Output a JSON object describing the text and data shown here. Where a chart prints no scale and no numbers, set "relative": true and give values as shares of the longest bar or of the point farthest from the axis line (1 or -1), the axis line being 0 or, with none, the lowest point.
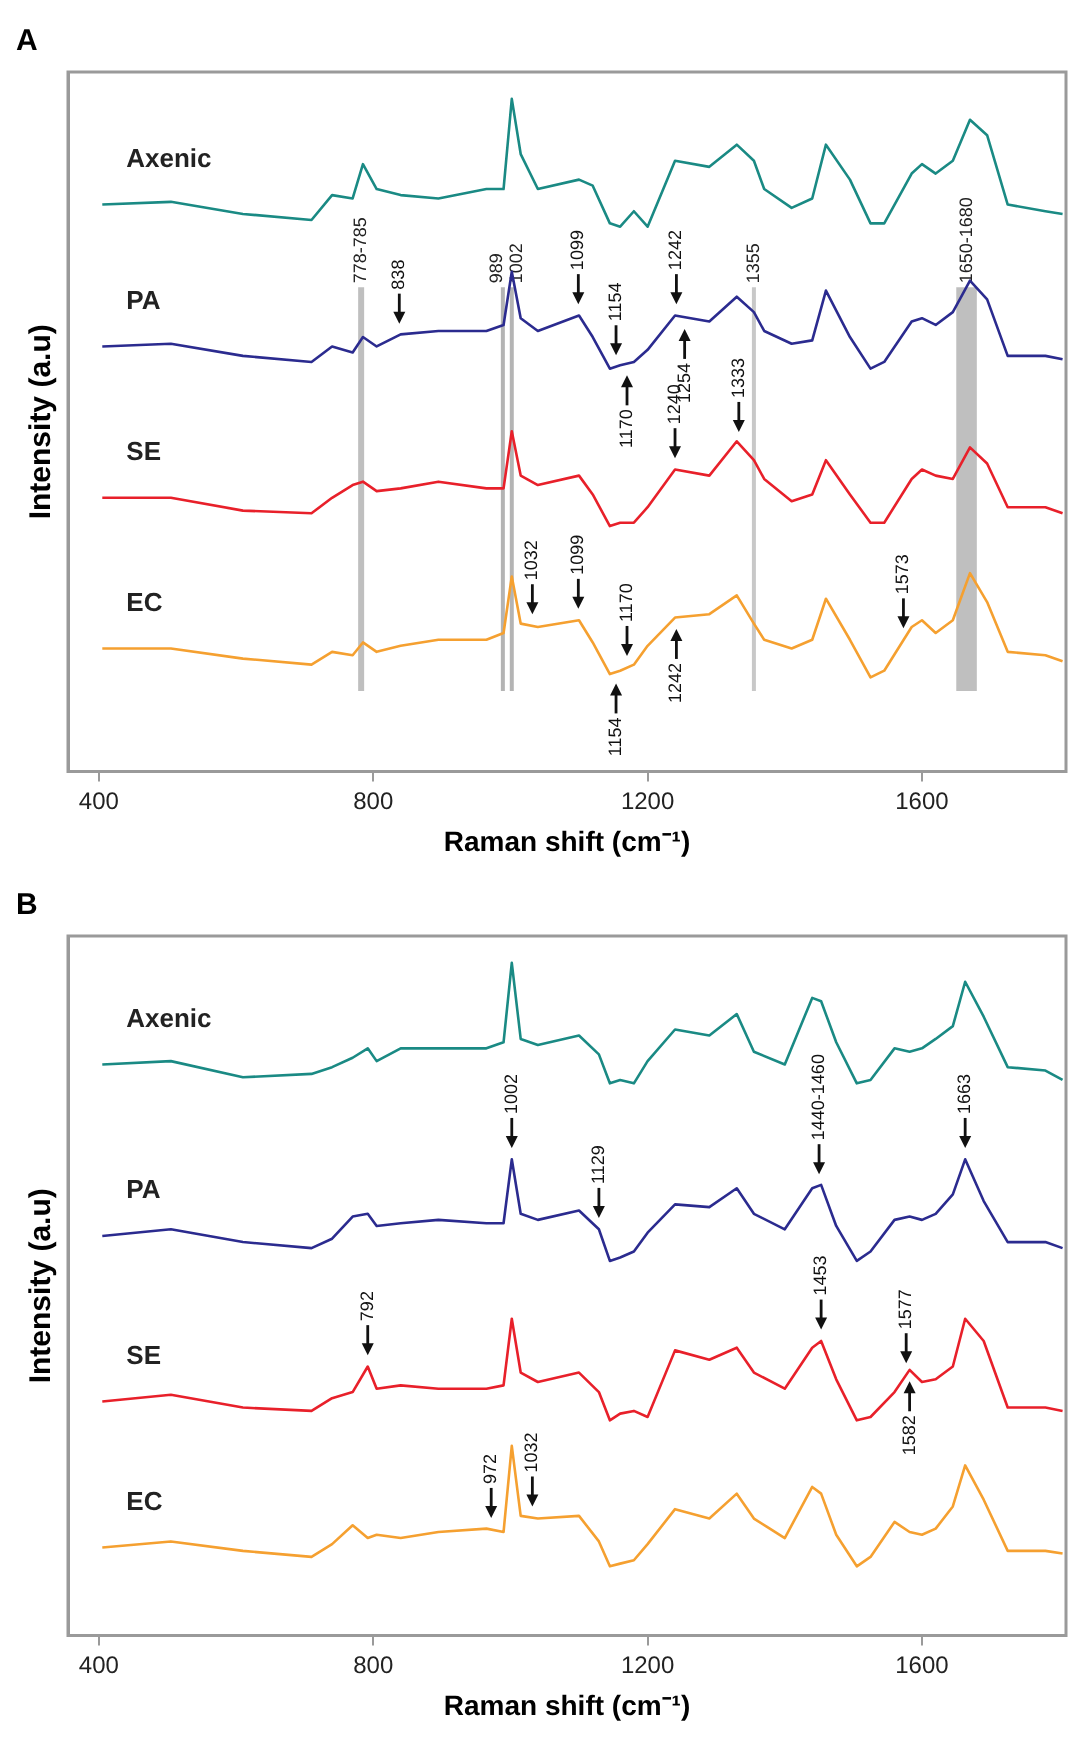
{
  "chart_data": [
    {
      "type": "line",
      "title": "A",
      "xlabel": "Raman shift (cm⁻¹)",
      "ylabel": "Intensity (a.u)",
      "relative": true,
      "marker": "none",
      "legend": false,
      "xlim": [
        355,
        1810
      ],
      "xticks": [
        400,
        800,
        1200,
        1600
      ],
      "x": [
        405,
        505,
        610,
        710,
        740,
        770,
        785,
        805,
        840,
        895,
        965,
        990,
        1002,
        1015,
        1040,
        1100,
        1120,
        1145,
        1160,
        1180,
        1200,
        1240,
        1290,
        1330,
        1355,
        1370,
        1410,
        1440,
        1460,
        1495,
        1525,
        1545,
        1585,
        1600,
        1620,
        1645,
        1670,
        1695,
        1725,
        1780,
        1805
      ],
      "series": [
        {
          "name": "Axenic",
          "color": "#1a8a84",
          "values": [
            0.843,
            0.847,
            0.829,
            0.82,
            0.857,
            0.852,
            0.903,
            0.866,
            0.857,
            0.852,
            0.866,
            0.866,
            1,
            0.918,
            0.866,
            0.88,
            0.871,
            0.815,
            0.81,
            0.833,
            0.81,
            0.908,
            0.899,
            0.932,
            0.908,
            0.866,
            0.838,
            0.852,
            0.932,
            0.88,
            0.815,
            0.815,
            0.889,
            0.903,
            0.889,
            0.908,
            0.969,
            0.946,
            0.843,
            0.833,
            0.829
          ]
        },
        {
          "name": "PA",
          "color": "#2b2b8f",
          "values": [
            0.632,
            0.636,
            0.618,
            0.609,
            0.632,
            0.623,
            0.646,
            0.632,
            0.65,
            0.655,
            0.655,
            0.664,
            0.743,
            0.674,
            0.655,
            0.678,
            0.646,
            0.599,
            0.604,
            0.609,
            0.627,
            0.678,
            0.669,
            0.706,
            0.683,
            0.655,
            0.636,
            0.641,
            0.715,
            0.646,
            0.599,
            0.609,
            0.669,
            0.674,
            0.664,
            0.683,
            0.73,
            0.702,
            0.618,
            0.618,
            0.613
          ]
        },
        {
          "name": "SE",
          "color": "#e8202a",
          "values": [
            0.407,
            0.407,
            0.388,
            0.384,
            0.407,
            0.426,
            0.431,
            0.417,
            0.421,
            0.431,
            0.421,
            0.421,
            0.506,
            0.44,
            0.426,
            0.44,
            0.412,
            0.365,
            0.37,
            0.37,
            0.393,
            0.449,
            0.44,
            0.491,
            0.463,
            0.435,
            0.402,
            0.412,
            0.463,
            0.412,
            0.37,
            0.37,
            0.435,
            0.449,
            0.44,
            0.435,
            0.482,
            0.458,
            0.393,
            0.393,
            0.384
          ]
        },
        {
          "name": "EC",
          "color": "#f5a030",
          "values": [
            0.183,
            0.183,
            0.168,
            0.159,
            0.178,
            0.173,
            0.192,
            0.178,
            0.187,
            0.196,
            0.196,
            0.206,
            0.29,
            0.22,
            0.215,
            0.225,
            0.192,
            0.145,
            0.15,
            0.159,
            0.187,
            0.229,
            0.234,
            0.262,
            0.22,
            0.196,
            0.183,
            0.196,
            0.257,
            0.196,
            0.14,
            0.15,
            0.215,
            0.225,
            0.206,
            0.225,
            0.295,
            0.252,
            0.178,
            0.173,
            0.164
          ]
        }
      ],
      "bands": [
        {
          "axis": "x",
          "from": 778,
          "to": 785,
          "label": "778-785",
          "color": "#b4b4b4"
        },
        {
          "axis": "x",
          "from": 1650,
          "to": 1680,
          "label": "1650-1680",
          "color": "#b4b4b4"
        }
      ],
      "ref_lines": [
        {
          "axis": "x",
          "value": 989,
          "label": "989",
          "color": "#b4b4b4"
        },
        {
          "axis": "x",
          "value": 1002,
          "label": "1002",
          "color": "#b4b4b4"
        },
        {
          "axis": "x",
          "value": 1355,
          "label": "1355",
          "color": "#c8c8c8"
        }
      ],
      "annotations": [
        {
          "text": "838",
          "x": 838,
          "y": 0.657
        },
        {
          "text": "1099",
          "x": 1099,
          "y": 0.686
        },
        {
          "text": "1154",
          "x": 1154,
          "y": 0.61
        },
        {
          "text": "1242",
          "x": 1242,
          "y": 0.686
        },
        {
          "text": "1170",
          "x": 1170,
          "y": 0.598
        },
        {
          "text": "1254",
          "x": 1254,
          "y": 0.667
        },
        {
          "text": "1240",
          "x": 1240,
          "y": 0.457
        },
        {
          "text": "1333",
          "x": 1333,
          "y": 0.496
        },
        {
          "text": "1032",
          "x": 1032,
          "y": 0.225
        },
        {
          "text": "1099",
          "x": 1099,
          "y": 0.233
        },
        {
          "text": "1170",
          "x": 1170,
          "y": 0.163
        },
        {
          "text": "1573",
          "x": 1573,
          "y": 0.204
        },
        {
          "text": "1154",
          "x": 1154,
          "y": 0.14
        },
        {
          "text": "1242",
          "x": 1242,
          "y": 0.221
        }
      ]
    },
    {
      "type": "line",
      "title": "B",
      "xlabel": "Raman shift (cm⁻¹)",
      "ylabel": "Intensity (a.u)",
      "relative": true,
      "marker": "none",
      "legend": false,
      "xlim": [
        355,
        1810
      ],
      "xticks": [
        400,
        800,
        1200,
        1600
      ],
      "x": [
        405,
        505,
        610,
        710,
        740,
        770,
        792,
        805,
        840,
        895,
        965,
        990,
        1002,
        1015,
        1040,
        1100,
        1129,
        1145,
        1160,
        1180,
        1200,
        1240,
        1290,
        1330,
        1355,
        1400,
        1440,
        1453,
        1475,
        1505,
        1525,
        1560,
        1582,
        1600,
        1620,
        1645,
        1663,
        1690,
        1725,
        1780,
        1805
      ],
      "series": [
        {
          "name": "Axenic",
          "color": "#1a8a84",
          "values": [
            0.849,
            0.854,
            0.83,
            0.835,
            0.845,
            0.859,
            0.873,
            0.854,
            0.873,
            0.873,
            0.873,
            0.882,
            1,
            0.887,
            0.878,
            0.892,
            0.864,
            0.821,
            0.826,
            0.821,
            0.854,
            0.901,
            0.892,
            0.924,
            0.868,
            0.849,
            0.948,
            0.943,
            0.882,
            0.821,
            0.826,
            0.873,
            0.868,
            0.873,
            0.887,
            0.906,
            0.972,
            0.92,
            0.845,
            0.84,
            0.826
          ]
        },
        {
          "name": "PA",
          "color": "#2b2b8f",
          "values": [
            0.594,
            0.604,
            0.585,
            0.576,
            0.59,
            0.623,
            0.627,
            0.609,
            0.613,
            0.618,
            0.613,
            0.613,
            0.708,
            0.627,
            0.618,
            0.632,
            0.604,
            0.557,
            0.562,
            0.571,
            0.599,
            0.641,
            0.637,
            0.665,
            0.627,
            0.604,
            0.665,
            0.67,
            0.609,
            0.557,
            0.571,
            0.618,
            0.623,
            0.618,
            0.627,
            0.656,
            0.708,
            0.646,
            0.585,
            0.585,
            0.576
          ]
        },
        {
          "name": "SE",
          "color": "#e8202a",
          "values": [
            0.348,
            0.358,
            0.339,
            0.334,
            0.353,
            0.362,
            0.4,
            0.367,
            0.372,
            0.367,
            0.367,
            0.372,
            0.471,
            0.391,
            0.377,
            0.391,
            0.362,
            0.32,
            0.33,
            0.334,
            0.325,
            0.424,
            0.41,
            0.428,
            0.391,
            0.367,
            0.428,
            0.438,
            0.381,
            0.32,
            0.325,
            0.362,
            0.395,
            0.377,
            0.381,
            0.4,
            0.471,
            0.438,
            0.339,
            0.339,
            0.334
          ]
        },
        {
          "name": "EC",
          "color": "#f5a030",
          "values": [
            0.131,
            0.14,
            0.126,
            0.117,
            0.136,
            0.164,
            0.145,
            0.15,
            0.145,
            0.154,
            0.159,
            0.154,
            0.282,
            0.178,
            0.174,
            0.178,
            0.14,
            0.103,
            0.107,
            0.112,
            0.136,
            0.188,
            0.174,
            0.211,
            0.174,
            0.145,
            0.221,
            0.211,
            0.15,
            0.103,
            0.117,
            0.169,
            0.154,
            0.15,
            0.159,
            0.192,
            0.253,
            0.202,
            0.126,
            0.126,
            0.122
          ]
        }
      ],
      "annotations": [
        {
          "text": "1002",
          "x": 1002,
          "y": 0.716
        },
        {
          "text": "1129",
          "x": 1129,
          "y": 0.612
        },
        {
          "text": "1440-1460",
          "x": 1450,
          "y": 0.677
        },
        {
          "text": "1663",
          "x": 1663,
          "y": 0.716
        },
        {
          "text": "792",
          "x": 792,
          "y": 0.408
        },
        {
          "text": "1453",
          "x": 1453,
          "y": 0.446
        },
        {
          "text": "1577",
          "x": 1577,
          "y": 0.396
        },
        {
          "text": "1582",
          "x": 1582,
          "y": 0.387
        },
        {
          "text": "972",
          "x": 972,
          "y": 0.166
        },
        {
          "text": "1032",
          "x": 1032,
          "y": 0.183
        }
      ]
    }
  ]
}
